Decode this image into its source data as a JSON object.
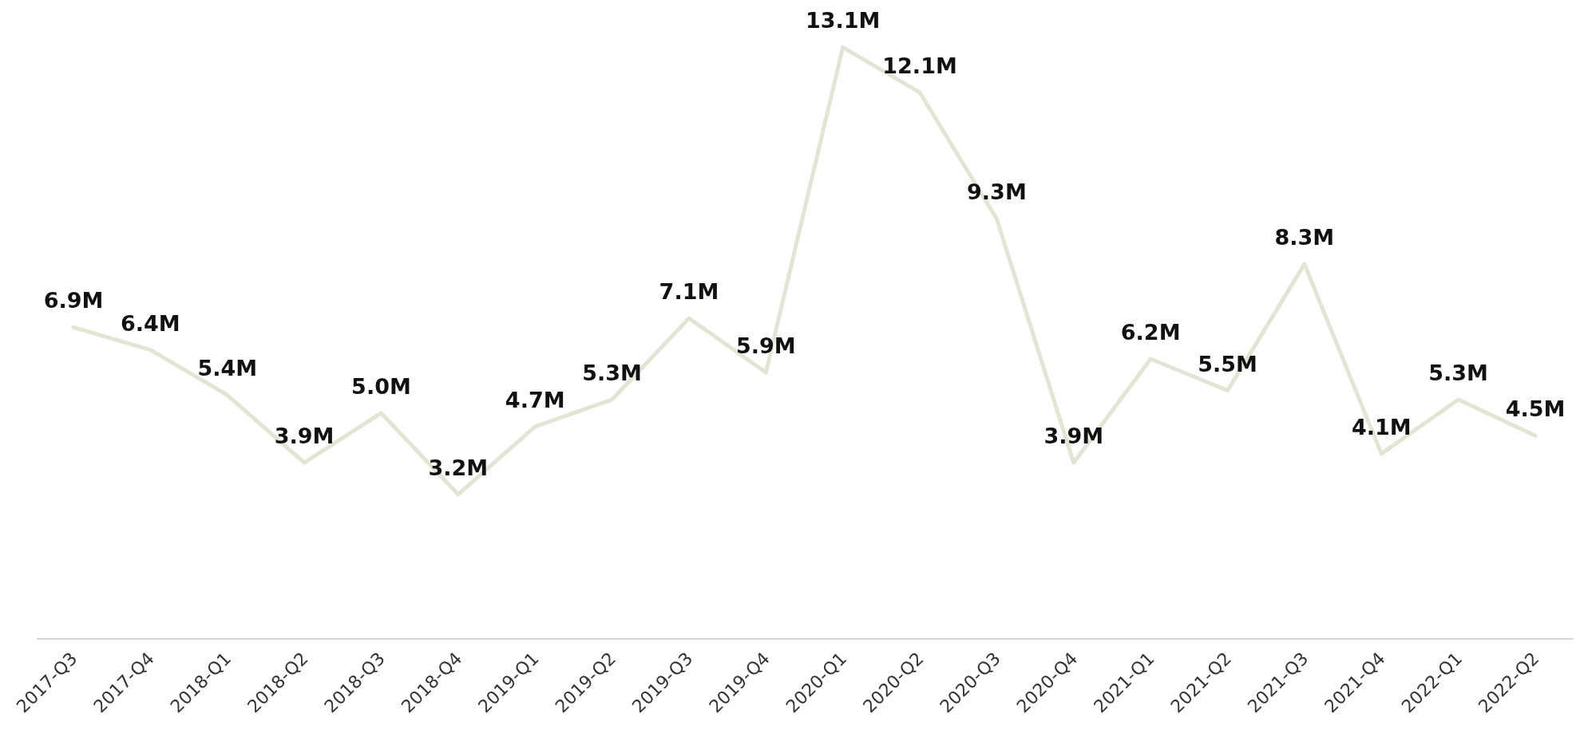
{
  "chart_data": {
    "type": "line",
    "categories": [
      "2017-Q3",
      "2017-Q4",
      "2018-Q1",
      "2018-Q2",
      "2018-Q3",
      "2018-Q4",
      "2019-Q1",
      "2019-Q2",
      "2019-Q3",
      "2019-Q4",
      "2020-Q1",
      "2020-Q2",
      "2020-Q3",
      "2020-Q4",
      "2021-Q1",
      "2021-Q2",
      "2021-Q3",
      "2021-Q4",
      "2022-Q1",
      "2022-Q2"
    ],
    "series": [
      {
        "color": "#e3e4d4",
        "values": [
          6.9,
          6.4,
          5.4,
          3.9,
          5.0,
          3.2,
          4.7,
          5.3,
          7.1,
          5.9,
          13.1,
          12.1,
          9.3,
          3.9,
          6.2,
          5.5,
          8.3,
          4.1,
          5.3,
          4.5
        ],
        "value_labels": [
          "6.9M",
          "6.4M",
          "5.4M",
          "3.9M",
          "5.0M",
          "3.2M",
          "4.7M",
          "5.3M",
          "7.1M",
          "5.9M",
          "13.1M",
          "12.1M",
          "9.3M",
          "3.9M",
          "6.2M",
          "5.5M",
          "8.3M",
          "4.1M",
          "5.3M",
          "4.5M"
        ]
      }
    ],
    "marker": "none",
    "line_style": "solid"
  }
}
